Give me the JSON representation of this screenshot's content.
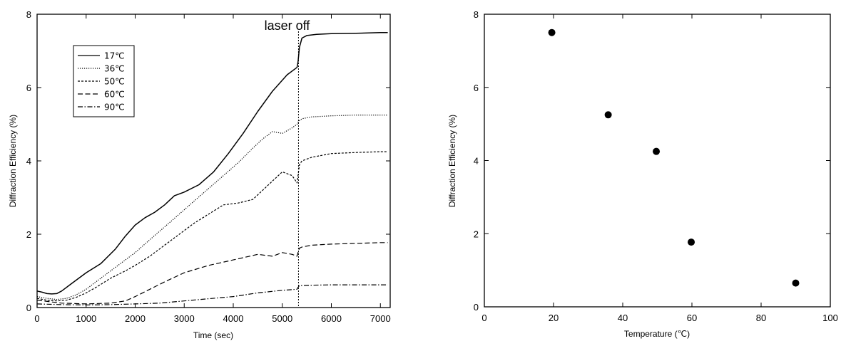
{
  "chart_data": [
    {
      "type": "line",
      "title": "",
      "xlabel": "Time (sec)",
      "ylabel": "Diffraction Efficiency (%)",
      "xlim": [
        0,
        7200
      ],
      "ylim": [
        0,
        8
      ],
      "xticks": [
        0,
        1000,
        2000,
        3000,
        4000,
        5000,
        6000,
        7000
      ],
      "yticks": [
        0,
        2,
        4,
        6,
        8
      ],
      "grid": false,
      "legend_position": "top-left",
      "annotation": {
        "text": "laser off",
        "x": 5330
      },
      "series": [
        {
          "name": "17℃",
          "dash": "solid",
          "x": [
            0,
            100,
            200,
            300,
            400,
            500,
            700,
            1000,
            1300,
            1600,
            1800,
            2000,
            2200,
            2400,
            2600,
            2800,
            3000,
            3300,
            3600,
            3900,
            4200,
            4500,
            4800,
            5100,
            5300,
            5320,
            5350,
            5400,
            5500,
            5700,
            6000,
            6500,
            7000,
            7150
          ],
          "y": [
            0.45,
            0.42,
            0.38,
            0.37,
            0.38,
            0.45,
            0.65,
            0.95,
            1.2,
            1.6,
            1.95,
            2.25,
            2.45,
            2.6,
            2.8,
            3.05,
            3.15,
            3.35,
            3.7,
            4.2,
            4.75,
            5.35,
            5.9,
            6.35,
            6.55,
            6.7,
            7.1,
            7.35,
            7.42,
            7.45,
            7.47,
            7.48,
            7.5,
            7.5
          ]
        },
        {
          "name": "36℃",
          "dash": "dotted",
          "x": [
            0,
            200,
            400,
            600,
            800,
            1000,
            1200,
            1500,
            1800,
            2000,
            2300,
            2600,
            2900,
            3200,
            3500,
            3800,
            4100,
            4400,
            4600,
            4800,
            5000,
            5200,
            5300,
            5320,
            5350,
            5400,
            5600,
            6000,
            6500,
            7000,
            7150
          ],
          "y": [
            0.3,
            0.25,
            0.22,
            0.25,
            0.35,
            0.5,
            0.7,
            1.0,
            1.3,
            1.5,
            1.85,
            2.2,
            2.55,
            2.9,
            3.25,
            3.6,
            3.95,
            4.35,
            4.6,
            4.8,
            4.75,
            4.9,
            5.0,
            5.05,
            5.1,
            5.15,
            5.2,
            5.23,
            5.25,
            5.25,
            5.25
          ]
        },
        {
          "name": "50℃",
          "dash": "short-dash",
          "x": [
            0,
            200,
            400,
            600,
            800,
            1000,
            1200,
            1500,
            1800,
            2000,
            2300,
            2600,
            2900,
            3200,
            3500,
            3800,
            4100,
            4400,
            4600,
            4800,
            5000,
            5200,
            5300,
            5320,
            5350,
            5400,
            5600,
            6000,
            6500,
            7000,
            7150
          ],
          "y": [
            0.25,
            0.2,
            0.18,
            0.2,
            0.28,
            0.4,
            0.55,
            0.8,
            1.0,
            1.15,
            1.4,
            1.7,
            2.0,
            2.3,
            2.55,
            2.8,
            2.85,
            2.95,
            3.2,
            3.45,
            3.7,
            3.6,
            3.4,
            3.6,
            3.9,
            4.0,
            4.1,
            4.2,
            4.23,
            4.25,
            4.25
          ]
        },
        {
          "name": "60℃",
          "dash": "long-dash",
          "x": [
            0,
            500,
            1000,
            1500,
            1800,
            2000,
            2300,
            2600,
            3000,
            3500,
            4000,
            4500,
            4800,
            5000,
            5200,
            5300,
            5320,
            5350,
            5400,
            5600,
            6000,
            6500,
            7000,
            7150
          ],
          "y": [
            0.2,
            0.12,
            0.1,
            0.12,
            0.18,
            0.3,
            0.5,
            0.7,
            0.95,
            1.15,
            1.3,
            1.45,
            1.4,
            1.5,
            1.45,
            1.4,
            1.5,
            1.62,
            1.65,
            1.7,
            1.73,
            1.75,
            1.77,
            1.77
          ]
        },
        {
          "name": "90℃",
          "dash": "dash-dot",
          "x": [
            0,
            500,
            1000,
            1500,
            2000,
            2500,
            3000,
            3500,
            4000,
            4500,
            5000,
            5300,
            5320,
            5350,
            5400,
            5600,
            6000,
            6500,
            7000,
            7150
          ],
          "y": [
            0.1,
            0.08,
            0.07,
            0.08,
            0.1,
            0.12,
            0.18,
            0.24,
            0.3,
            0.4,
            0.47,
            0.5,
            0.55,
            0.6,
            0.6,
            0.61,
            0.62,
            0.62,
            0.62,
            0.62
          ]
        }
      ]
    },
    {
      "type": "scatter",
      "title": "",
      "xlabel": "Temperature (℃)",
      "ylabel": "Diffraction Efficiency (%)",
      "xlim": [
        0,
        100
      ],
      "ylim": [
        0,
        8
      ],
      "xticks": [
        0,
        20,
        40,
        60,
        80,
        100
      ],
      "yticks": [
        0,
        2,
        4,
        6,
        8
      ],
      "grid": false,
      "series": [
        {
          "x": [
            19.5,
            35.8,
            49.7,
            59.8,
            90
          ],
          "y": [
            7.5,
            5.25,
            4.25,
            1.77,
            0.65
          ]
        }
      ]
    }
  ]
}
